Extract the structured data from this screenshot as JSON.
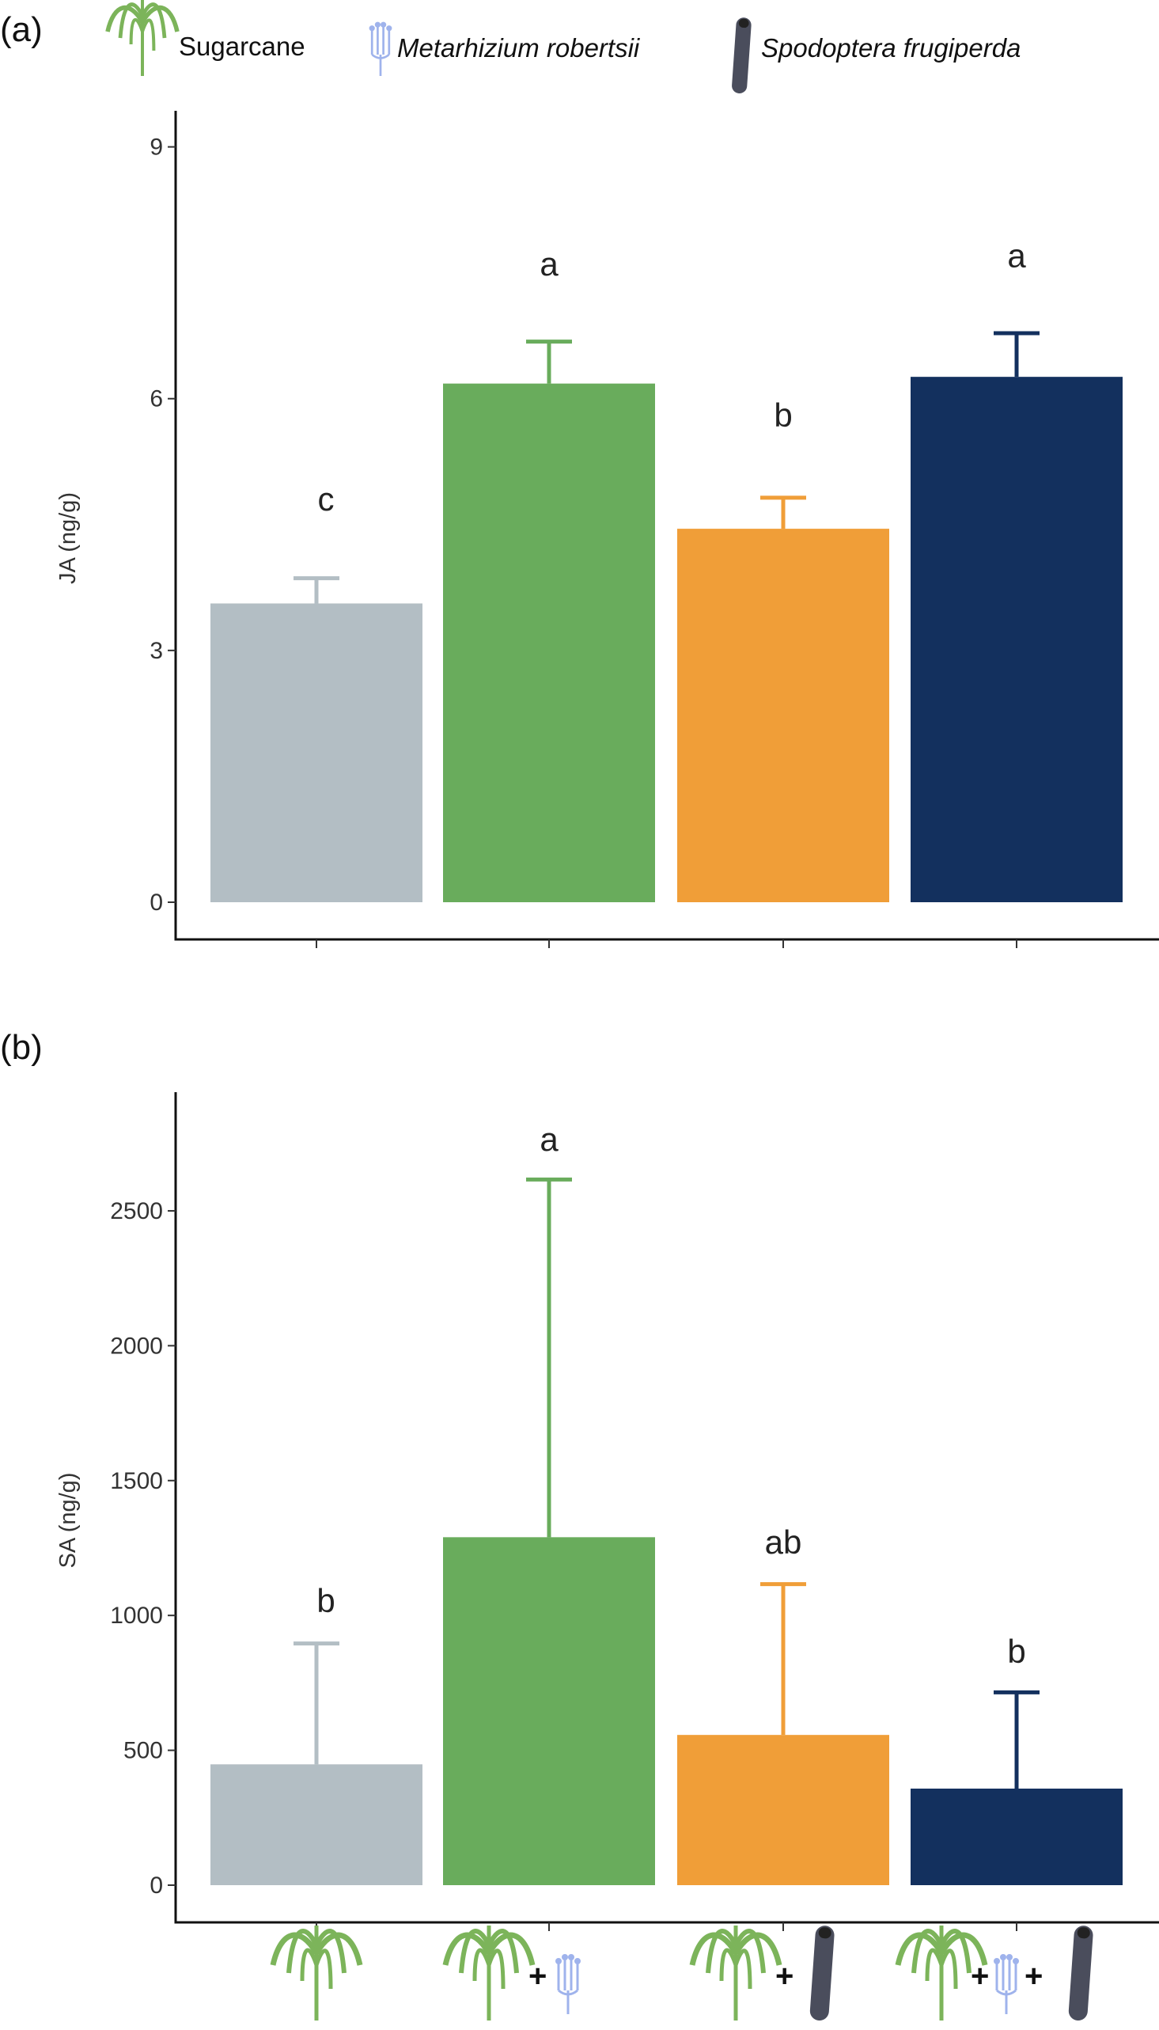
{
  "legend": {
    "items": [
      {
        "icon": "sugarcane-icon",
        "label": "Sugarcane",
        "italic": false
      },
      {
        "icon": "fungus-icon",
        "label": "Metarhizium robertsii",
        "italic": true
      },
      {
        "icon": "caterpillar-icon",
        "label": "Spodoptera frugiperda",
        "italic": true
      }
    ]
  },
  "colors": {
    "control": "#b3bec4",
    "fungus": "#69ac5c",
    "herbivore": "#f09e38",
    "both": "#13305e",
    "plant": "#7cb45a",
    "fungus_icon": "#9fb3ec",
    "caterpillar": "#4a4d5c"
  },
  "chart_data": [
    {
      "panel_label": "(a)",
      "type": "bar",
      "ylabel": "JA (ng/g)",
      "ylim": [
        0,
        9.43
      ],
      "yticks": [
        "0",
        "3",
        "6",
        "9"
      ],
      "categories": [
        "sugarcane",
        "sugarcane + metarhizium-robertsii",
        "sugarcane + spodoptera-frugiperda",
        "sugarcane + metarhizium-robertsii + spodoptera-frugiperda"
      ],
      "values": [
        3.56,
        6.18,
        4.45,
        6.26
      ],
      "error_upper": [
        3.86,
        6.68,
        4.82,
        6.78
      ],
      "letters": [
        "c",
        "a",
        "b",
        "a"
      ],
      "letter_positions": [
        4.8,
        7.6,
        5.8,
        7.7
      ],
      "grid": false
    },
    {
      "panel_label": "(b)",
      "type": "bar",
      "ylabel": "SA (ng/g)",
      "ylim": [
        0,
        2940
      ],
      "yticks": [
        "0",
        "500",
        "1000",
        "1500",
        "2000",
        "2500"
      ],
      "categories": [
        "sugarcane",
        "sugarcane + metarhizium-robertsii",
        "sugarcane + spodoptera-frugiperda",
        "sugarcane + metarhizium-robertsii + spodoptera-frugiperda"
      ],
      "values": [
        448,
        1290,
        557,
        358
      ],
      "error_upper": [
        896,
        2616,
        1116,
        715
      ],
      "letters": [
        "b",
        "a",
        "ab",
        "b"
      ],
      "letter_positions": [
        1054,
        2764,
        1271,
        866
      ],
      "grid": false
    }
  ]
}
